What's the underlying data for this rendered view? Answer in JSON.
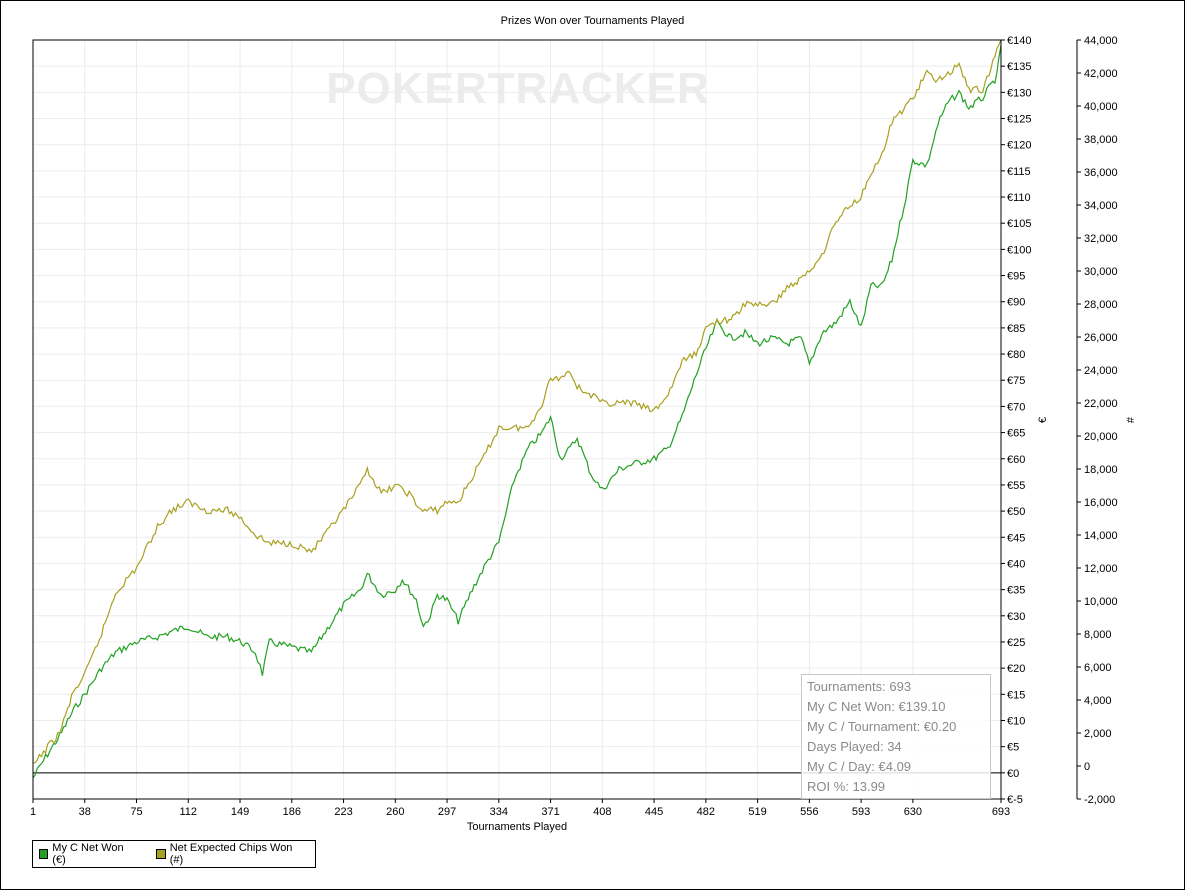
{
  "chart_data": {
    "type": "line",
    "title": "Prizes Won over Tournaments Played",
    "xlabel": "Tournaments Played",
    "ylabel_left": "€",
    "ylabel_right": "#",
    "watermark": "POKERTRACKER",
    "x_ticks": [
      1,
      38,
      75,
      112,
      149,
      186,
      223,
      260,
      297,
      334,
      371,
      408,
      445,
      482,
      519,
      556,
      593,
      630,
      693
    ],
    "xlim": [
      1,
      693
    ],
    "y_left_ticks": [
      "€140",
      "€135",
      "€130",
      "€125",
      "€120",
      "€115",
      "€110",
      "€105",
      "€100",
      "€95",
      "€90",
      "€85",
      "€80",
      "€75",
      "€70",
      "€65",
      "€60",
      "€55",
      "€50",
      "€45",
      "€40",
      "€35",
      "€30",
      "€25",
      "€20",
      "€15",
      "€10",
      "€5",
      "€0",
      "€-5"
    ],
    "ylim_left": [
      -5,
      140
    ],
    "y_right_ticks": [
      "44,000",
      "42,000",
      "40,000",
      "38,000",
      "36,000",
      "34,000",
      "32,000",
      "30,000",
      "28,000",
      "26,000",
      "24,000",
      "22,000",
      "20,000",
      "18,000",
      "16,000",
      "14,000",
      "12,000",
      "10,000",
      "8,000",
      "6,000",
      "4,000",
      "2,000",
      "0",
      "-2,000"
    ],
    "ylim_right": [
      -2000,
      44000
    ],
    "grid": true,
    "legend_position": "bottom-left",
    "series": [
      {
        "name": "My C Net Won (€)",
        "axis": "left",
        "color": "#22a022",
        "points": [
          [
            1,
            -1
          ],
          [
            10,
            3
          ],
          [
            20,
            7
          ],
          [
            30,
            12
          ],
          [
            38,
            15
          ],
          [
            50,
            20
          ],
          [
            60,
            23
          ],
          [
            75,
            25
          ],
          [
            90,
            26
          ],
          [
            100,
            27
          ],
          [
            112,
            28
          ],
          [
            125,
            26
          ],
          [
            140,
            26
          ],
          [
            150,
            25
          ],
          [
            160,
            23
          ],
          [
            165,
            19
          ],
          [
            170,
            25
          ],
          [
            186,
            24
          ],
          [
            200,
            23
          ],
          [
            210,
            27
          ],
          [
            223,
            32
          ],
          [
            235,
            35
          ],
          [
            240,
            38
          ],
          [
            250,
            34
          ],
          [
            260,
            35
          ],
          [
            265,
            37
          ],
          [
            275,
            33
          ],
          [
            280,
            28
          ],
          [
            285,
            30
          ],
          [
            290,
            34
          ],
          [
            297,
            33
          ],
          [
            305,
            29
          ],
          [
            315,
            35
          ],
          [
            325,
            40
          ],
          [
            334,
            44
          ],
          [
            345,
            56
          ],
          [
            355,
            62
          ],
          [
            365,
            65
          ],
          [
            371,
            68
          ],
          [
            378,
            60
          ],
          [
            385,
            62
          ],
          [
            390,
            64
          ],
          [
            400,
            57
          ],
          [
            408,
            54
          ],
          [
            420,
            58
          ],
          [
            430,
            59
          ],
          [
            445,
            60
          ],
          [
            455,
            62
          ],
          [
            465,
            68
          ],
          [
            475,
            76
          ],
          [
            482,
            81
          ],
          [
            490,
            86
          ],
          [
            500,
            83
          ],
          [
            510,
            84
          ],
          [
            519,
            82
          ],
          [
            530,
            83
          ],
          [
            540,
            82
          ],
          [
            550,
            83
          ],
          [
            556,
            78
          ],
          [
            565,
            84
          ],
          [
            575,
            86
          ],
          [
            585,
            90
          ],
          [
            593,
            85
          ],
          [
            600,
            93
          ],
          [
            608,
            93
          ],
          [
            615,
            98
          ],
          [
            625,
            110
          ],
          [
            630,
            117
          ],
          [
            640,
            116
          ],
          [
            648,
            124
          ],
          [
            655,
            128
          ],
          [
            663,
            130
          ],
          [
            670,
            127
          ],
          [
            680,
            129
          ],
          [
            690,
            133
          ],
          [
            693,
            139
          ]
        ]
      },
      {
        "name": "Net Expected Chips Won (#)",
        "axis": "right",
        "color": "#a8a020",
        "points": [
          [
            1,
            0
          ],
          [
            10,
            1000
          ],
          [
            20,
            2000
          ],
          [
            30,
            4500
          ],
          [
            38,
            5500
          ],
          [
            50,
            8000
          ],
          [
            60,
            10500
          ],
          [
            75,
            12000
          ],
          [
            90,
            14500
          ],
          [
            100,
            15500
          ],
          [
            112,
            16000
          ],
          [
            125,
            15500
          ],
          [
            140,
            15500
          ],
          [
            150,
            15000
          ],
          [
            160,
            14000
          ],
          [
            170,
            13500
          ],
          [
            186,
            13500
          ],
          [
            200,
            13000
          ],
          [
            210,
            14000
          ],
          [
            223,
            15500
          ],
          [
            235,
            17000
          ],
          [
            240,
            18000
          ],
          [
            250,
            16500
          ],
          [
            260,
            17000
          ],
          [
            270,
            16500
          ],
          [
            278,
            15500
          ],
          [
            290,
            15500
          ],
          [
            297,
            16000
          ],
          [
            305,
            16000
          ],
          [
            315,
            17500
          ],
          [
            325,
            19000
          ],
          [
            334,
            20500
          ],
          [
            345,
            20500
          ],
          [
            355,
            20500
          ],
          [
            365,
            22000
          ],
          [
            371,
            23500
          ],
          [
            378,
            23500
          ],
          [
            385,
            24000
          ],
          [
            390,
            23000
          ],
          [
            400,
            22500
          ],
          [
            408,
            22000
          ],
          [
            420,
            22000
          ],
          [
            430,
            22000
          ],
          [
            445,
            21500
          ],
          [
            455,
            22500
          ],
          [
            465,
            24500
          ],
          [
            475,
            25000
          ],
          [
            482,
            26500
          ],
          [
            490,
            27000
          ],
          [
            500,
            27000
          ],
          [
            510,
            28000
          ],
          [
            519,
            28000
          ],
          [
            530,
            28000
          ],
          [
            540,
            29000
          ],
          [
            550,
            29500
          ],
          [
            556,
            30000
          ],
          [
            565,
            31000
          ],
          [
            575,
            33000
          ],
          [
            585,
            34000
          ],
          [
            593,
            34500
          ],
          [
            600,
            36000
          ],
          [
            608,
            37000
          ],
          [
            615,
            39000
          ],
          [
            625,
            40000
          ],
          [
            630,
            40500
          ],
          [
            640,
            42000
          ],
          [
            648,
            41500
          ],
          [
            655,
            42000
          ],
          [
            663,
            42500
          ],
          [
            670,
            41000
          ],
          [
            680,
            41000
          ],
          [
            693,
            44000
          ]
        ]
      }
    ]
  },
  "stats": {
    "tournaments": "Tournaments: 693",
    "net_won": "My C Net Won: €139.10",
    "per_tournament": "My C / Tournament: €0.20",
    "days_played": "Days Played: 34",
    "per_day": "My C / Day: €4.09",
    "roi": "ROI %: 13.99"
  }
}
